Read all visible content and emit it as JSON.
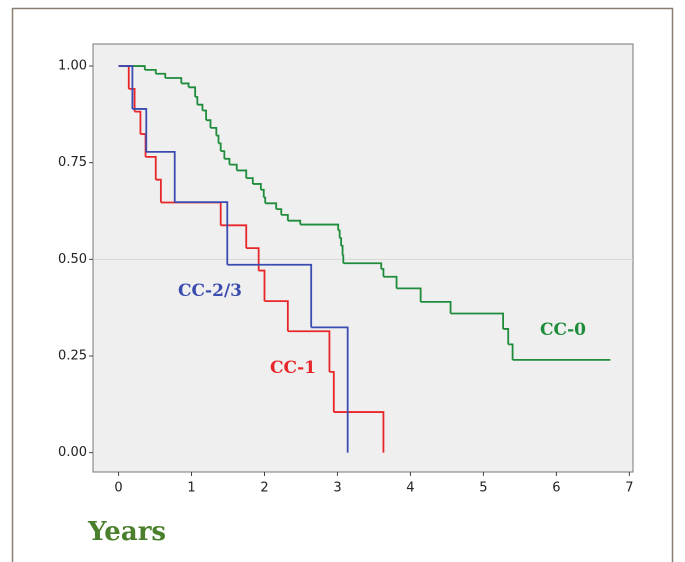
{
  "chart_data": {
    "type": "step",
    "x_label": "Years",
    "xlim": [
      -0.35,
      7.05
    ],
    "ylim": [
      -0.05,
      1.057
    ],
    "xticks": [
      0,
      1,
      2,
      3,
      4,
      5,
      6,
      7
    ],
    "yticks": [
      {
        "value": 0,
        "label": "0.00"
      },
      {
        "value": 0.25,
        "label": "0.25"
      },
      {
        "value": 0.5,
        "label": "0.50"
      },
      {
        "value": 0.75,
        "label": "0.75"
      },
      {
        "value": 1,
        "label": "1.00"
      }
    ],
    "reference_line": 0.5,
    "series": [
      {
        "name": "CC-0",
        "color": "#1f8c3b",
        "x": [
          0,
          0.36,
          0.51,
          0.64,
          0.86,
          0.96,
          1.05,
          1.08,
          1.15,
          1.2,
          1.26,
          1.34,
          1.37,
          1.4,
          1.45,
          1.52,
          1.62,
          1.75,
          1.84,
          1.95,
          1.99,
          2.01,
          2.16,
          2.23,
          2.32,
          2.49,
          3.01,
          3.03,
          3.05,
          3.07,
          3.08,
          3.6,
          3.63,
          3.81,
          4.14,
          4.55,
          5.27,
          5.34,
          5.4,
          6.74
        ],
        "values": [
          1,
          0.99,
          0.98,
          0.969,
          0.955,
          0.945,
          0.92,
          0.9,
          0.885,
          0.86,
          0.84,
          0.82,
          0.8,
          0.78,
          0.76,
          0.745,
          0.73,
          0.71,
          0.695,
          0.68,
          0.66,
          0.645,
          0.63,
          0.615,
          0.6,
          0.59,
          0.575,
          0.555,
          0.535,
          0.51,
          0.49,
          0.475,
          0.455,
          0.425,
          0.39,
          0.36,
          0.32,
          0.28,
          0.24,
          0.24
        ]
      },
      {
        "name": "CC-1",
        "color": "#e8262a",
        "x": [
          0,
          0.14,
          0.22,
          0.3,
          0.37,
          0.51,
          0.58,
          1.4,
          1.75,
          1.92,
          2.0,
          2.32,
          2.89,
          2.95,
          3.63
        ],
        "values": [
          1,
          0.941,
          0.882,
          0.824,
          0.765,
          0.706,
          0.647,
          0.588,
          0.529,
          0.471,
          0.392,
          0.314,
          0.209,
          0.105,
          0
        ]
      },
      {
        "name": "CC-2/3",
        "color": "#3b4cb0",
        "x": [
          0,
          0.19,
          0.38,
          0.77,
          1.49,
          2.64,
          3.14
        ],
        "values": [
          1,
          0.889,
          0.778,
          0.648,
          0.486,
          0.324,
          0
        ]
      }
    ]
  }
}
